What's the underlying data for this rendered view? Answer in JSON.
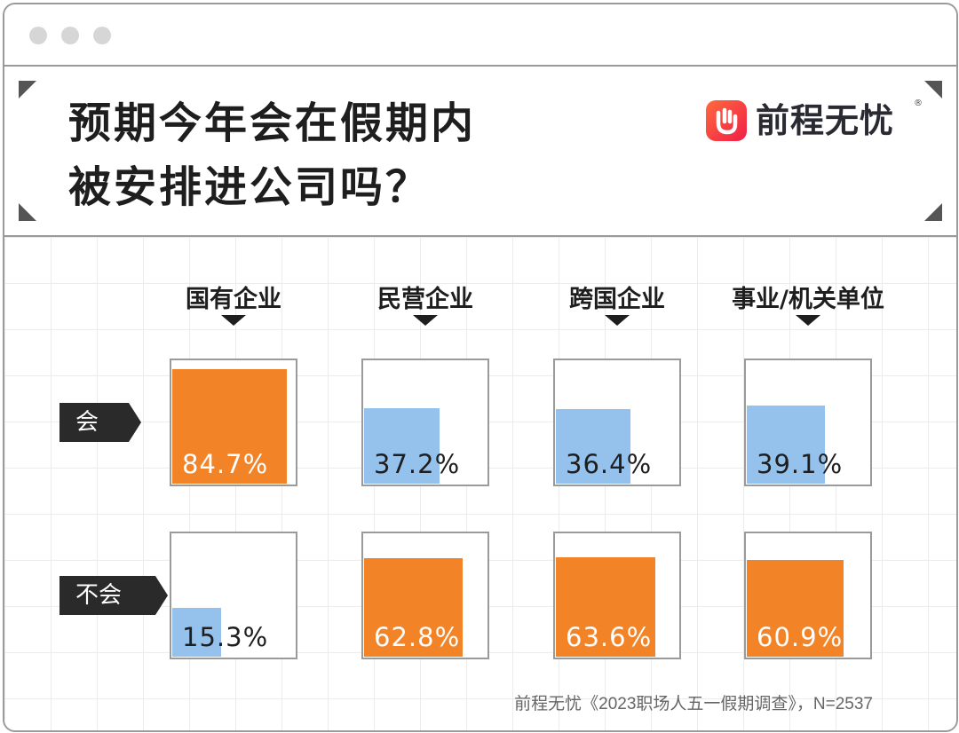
{
  "title_lines": [
    "预期今年会在假期内",
    "被安排进公司吗？"
  ],
  "brand": {
    "name": "前程无忧",
    "registered": "®",
    "icon": "hand-logo-icon"
  },
  "source": "前程无忧《2023职场人五一假期调查》，N=2537",
  "colors": {
    "highlight": "#F28427",
    "minor": "#95C2EC",
    "tag": "#2A2A2A"
  },
  "chart_data": {
    "type": "bar",
    "title": "预期今年会在假期内被安排进公司吗？",
    "categories": [
      "国有企业",
      "民营企业",
      "跨国企业",
      "事业/机关单位"
    ],
    "series": [
      {
        "name": "会",
        "values": [
          84.7,
          37.2,
          36.4,
          39.1
        ]
      },
      {
        "name": "不会",
        "values": [
          15.3,
          62.8,
          63.6,
          60.9
        ]
      }
    ],
    "labels": {
      "会": [
        "84.7%",
        "37.2%",
        "36.4%",
        "39.1%"
      ],
      "不会": [
        "15.3%",
        "62.8%",
        "63.6%",
        "60.9%"
      ]
    },
    "unit": "%",
    "ylim": [
      0,
      100
    ]
  }
}
